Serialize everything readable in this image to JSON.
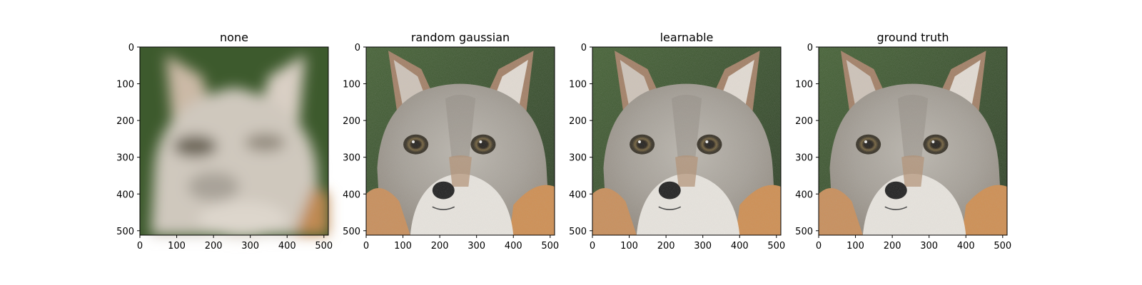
{
  "figure": {
    "panels": [
      {
        "title": "none",
        "image": "blurry-fox-image",
        "style": "blurred"
      },
      {
        "title": "random gaussian",
        "image": "fox-face-image",
        "style": "sharp"
      },
      {
        "title": "learnable",
        "image": "fox-face-image",
        "style": "sharp"
      },
      {
        "title": "ground truth",
        "image": "fox-face-image",
        "style": "sharp"
      }
    ],
    "x_ticks": [
      "0",
      "100",
      "200",
      "300",
      "400",
      "500"
    ],
    "y_ticks": [
      "0",
      "100",
      "200",
      "300",
      "400",
      "500"
    ],
    "axis_range": [
      0,
      512
    ],
    "colors": {
      "background_green": "#2f4a22",
      "fur_gray": "#a8a39b",
      "fur_orange": "#c98a52",
      "fur_white": "#ece8e1",
      "eye": "#2a2418",
      "nose": "#111111"
    }
  }
}
